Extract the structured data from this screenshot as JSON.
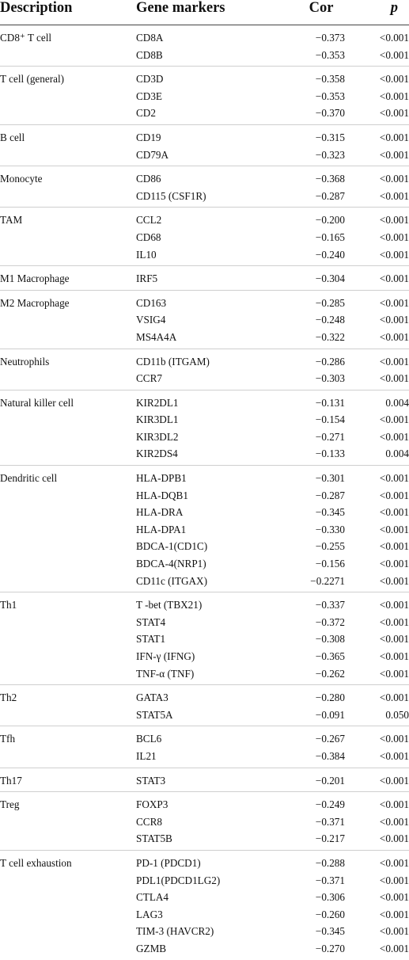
{
  "headers": {
    "description": "Description",
    "gene_markers": "Gene markers",
    "cor": "Cor",
    "p": "p"
  },
  "groups": [
    {
      "description": "CD8⁺ T cell",
      "rows": [
        {
          "gene": "CD8A",
          "cor": "−0.373",
          "p": "<0.001"
        },
        {
          "gene": "CD8B",
          "cor": "−0.353",
          "p": "<0.001"
        }
      ]
    },
    {
      "description": "T cell (general)",
      "rows": [
        {
          "gene": "CD3D",
          "cor": "−0.358",
          "p": "<0.001"
        },
        {
          "gene": "CD3E",
          "cor": "−0.353",
          "p": "<0.001"
        },
        {
          "gene": "CD2",
          "cor": "−0.370",
          "p": "<0.001"
        }
      ]
    },
    {
      "description": "B cell",
      "rows": [
        {
          "gene": "CD19",
          "cor": "−0.315",
          "p": "<0.001"
        },
        {
          "gene": "CD79A",
          "cor": "−0.323",
          "p": "<0.001"
        }
      ]
    },
    {
      "description": "Monocyte",
      "rows": [
        {
          "gene": "CD86",
          "cor": "−0.368",
          "p": "<0.001"
        },
        {
          "gene": "CD115 (CSF1R)",
          "cor": "−0.287",
          "p": "<0.001"
        }
      ]
    },
    {
      "description": "TAM",
      "rows": [
        {
          "gene": "CCL2",
          "cor": "−0.200",
          "p": "<0.001"
        },
        {
          "gene": "CD68",
          "cor": "−0.165",
          "p": "<0.001"
        },
        {
          "gene": "IL10",
          "cor": "−0.240",
          "p": "<0.001"
        }
      ]
    },
    {
      "description": "M1 Macrophage",
      "rows": [
        {
          "gene": "IRF5",
          "cor": "−0.304",
          "p": "<0.001"
        }
      ]
    },
    {
      "description": "M2 Macrophage",
      "rows": [
        {
          "gene": "CD163",
          "cor": "−0.285",
          "p": "<0.001"
        },
        {
          "gene": "VSIG4",
          "cor": "−0.248",
          "p": "<0.001"
        },
        {
          "gene": "MS4A4A",
          "cor": "−0.322",
          "p": "<0.001"
        }
      ]
    },
    {
      "description": "Neutrophils",
      "rows": [
        {
          "gene": "CD11b (ITGAM)",
          "cor": "−0.286",
          "p": "<0.001"
        },
        {
          "gene": "CCR7",
          "cor": "−0.303",
          "p": "<0.001"
        }
      ]
    },
    {
      "description": "Natural killer cell",
      "rows": [
        {
          "gene": "KIR2DL1",
          "cor": "−0.131",
          "p": "0.004"
        },
        {
          "gene": "KIR3DL1",
          "cor": "−0.154",
          "p": "<0.001"
        },
        {
          "gene": "KIR3DL2",
          "cor": "−0.271",
          "p": "<0.001"
        },
        {
          "gene": "KIR2DS4",
          "cor": "−0.133",
          "p": "0.004"
        }
      ]
    },
    {
      "description": "Dendritic cell",
      "rows": [
        {
          "gene": "HLA-DPB1",
          "cor": "−0.301",
          "p": "<0.001"
        },
        {
          "gene": "HLA-DQB1",
          "cor": "−0.287",
          "p": "<0.001"
        },
        {
          "gene": "HLA-DRA",
          "cor": "−0.345",
          "p": "<0.001"
        },
        {
          "gene": "HLA-DPA1",
          "cor": "−0.330",
          "p": "<0.001"
        },
        {
          "gene": "BDCA-1(CD1C)",
          "cor": "−0.255",
          "p": "<0.001"
        },
        {
          "gene": "BDCA-4(NRP1)",
          "cor": "−0.156",
          "p": "<0.001"
        },
        {
          "gene": "CD11c (ITGAX)",
          "cor": "−0.2271",
          "p": "<0.001"
        }
      ]
    },
    {
      "description": "Th1",
      "rows": [
        {
          "gene": "T -bet (TBX21)",
          "cor": "−0.337",
          "p": "<0.001"
        },
        {
          "gene": "STAT4",
          "cor": "−0.372",
          "p": "<0.001"
        },
        {
          "gene": "STAT1",
          "cor": "−0.308",
          "p": "<0.001"
        },
        {
          "gene": "IFN-γ (IFNG)",
          "cor": "−0.365",
          "p": "<0.001"
        },
        {
          "gene": "TNF-α (TNF)",
          "cor": "−0.262",
          "p": "<0.001"
        }
      ]
    },
    {
      "description": "Th2",
      "rows": [
        {
          "gene": "GATA3",
          "cor": "−0.280",
          "p": "<0.001"
        },
        {
          "gene": "STAT5A",
          "cor": "−0.091",
          "p": "0.050"
        }
      ]
    },
    {
      "description": "Tfh",
      "rows": [
        {
          "gene": "BCL6",
          "cor": "−0.267",
          "p": "<0.001"
        },
        {
          "gene": "IL21",
          "cor": "−0.384",
          "p": "<0.001"
        }
      ]
    },
    {
      "description": "Th17",
      "rows": [
        {
          "gene": "STAT3",
          "cor": "−0.201",
          "p": "<0.001"
        }
      ]
    },
    {
      "description": "Treg",
      "rows": [
        {
          "gene": "FOXP3",
          "cor": "−0.249",
          "p": "<0.001"
        },
        {
          "gene": "CCR8",
          "cor": "−0.371",
          "p": "<0.001"
        },
        {
          "gene": "STAT5B",
          "cor": "−0.217",
          "p": "<0.001"
        }
      ]
    },
    {
      "description": "T cell exhaustion",
      "rows": [
        {
          "gene": "PD-1 (PDCD1)",
          "cor": "−0.288",
          "p": "<0.001"
        },
        {
          "gene": "PDL1(PDCD1LG2)",
          "cor": "−0.371",
          "p": "<0.001"
        },
        {
          "gene": "CTLA4",
          "cor": "−0.306",
          "p": "<0.001"
        },
        {
          "gene": "LAG3",
          "cor": "−0.260",
          "p": "<0.001"
        },
        {
          "gene": "TIM-3 (HAVCR2)",
          "cor": "−0.345",
          "p": "<0.001"
        },
        {
          "gene": "GZMB",
          "cor": "−0.270",
          "p": "<0.001"
        }
      ]
    }
  ]
}
